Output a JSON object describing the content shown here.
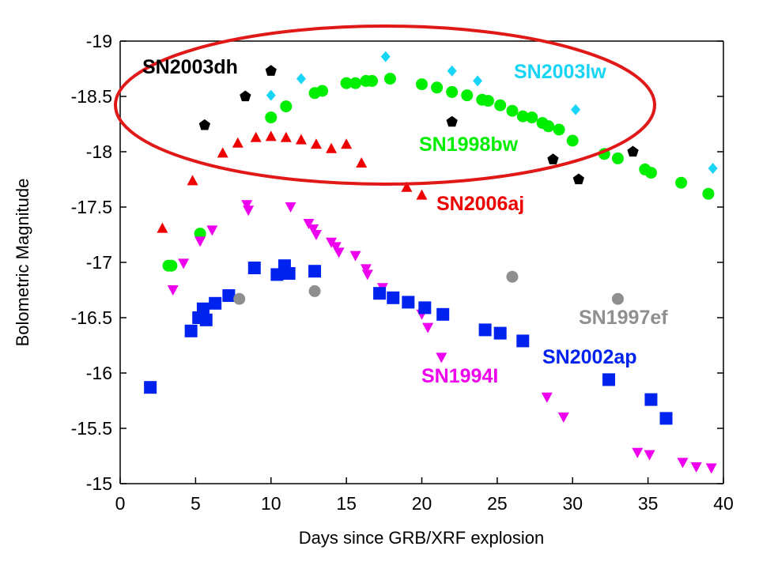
{
  "chart_data": {
    "type": "scatter",
    "xlabel": "Days since GRB/XRF explosion",
    "ylabel": "Bolometric Magnitude",
    "xlim": [
      0,
      40
    ],
    "ylim": [
      -15,
      -19
    ],
    "y_inverted": true,
    "x_ticks": [
      "0",
      "5",
      "10",
      "15",
      "20",
      "25",
      "30",
      "35",
      "40"
    ],
    "y_ticks": [
      "-15",
      "-15.5",
      "-16",
      "-16.5",
      "-17",
      "-17.5",
      "-18",
      "-18.5",
      "-19"
    ],
    "grid": false,
    "legend": "inline labels",
    "annotation": "red ellipse enclosing SN2003dh, SN2003lw, SN1998bw and SN2006aj",
    "series": [
      {
        "name": "SN2003dh",
        "color": "#000000",
        "marker": "pentagon",
        "x": [
          5.6,
          8.3,
          10.0,
          22.0,
          28.7,
          30.4,
          34.0
        ],
        "y": [
          -18.24,
          -18.5,
          -18.73,
          -18.27,
          -17.93,
          -17.75,
          -18.0
        ]
      },
      {
        "name": "SN2003lw",
        "color": "#19d5f5",
        "marker": "diamond",
        "x": [
          10.0,
          12.0,
          17.6,
          22.0,
          23.7,
          30.2,
          39.3
        ],
        "y": [
          -18.51,
          -18.66,
          -18.86,
          -18.73,
          -18.64,
          -18.38,
          -17.85
        ]
      },
      {
        "name": "SN1998bw",
        "color": "#00ee00",
        "marker": "circle",
        "x": [
          3.2,
          3.4,
          5.3,
          10.0,
          11.0,
          12.9,
          13.4,
          15.0,
          15.6,
          16.3,
          16.7,
          17.9,
          20.0,
          21.0,
          22.0,
          23.0,
          24.0,
          24.4,
          25.2,
          26.0,
          26.7,
          27.3,
          28.0,
          28.4,
          29.1,
          30.0,
          32.1,
          33.0,
          34.8,
          35.2,
          37.2,
          39.0
        ],
        "y": [
          -16.97,
          -16.97,
          -17.26,
          -18.31,
          -18.41,
          -18.53,
          -18.55,
          -18.62,
          -18.62,
          -18.64,
          -18.64,
          -18.66,
          -18.61,
          -18.58,
          -18.54,
          -18.51,
          -18.47,
          -18.46,
          -18.42,
          -18.37,
          -18.32,
          -18.31,
          -18.26,
          -18.23,
          -18.2,
          -18.1,
          -17.98,
          -17.94,
          -17.84,
          -17.81,
          -17.72,
          -17.62
        ]
      },
      {
        "name": "SN2006aj",
        "color": "#ee0000",
        "marker": "triangle-up",
        "x": [
          2.8,
          4.8,
          6.8,
          7.8,
          9.0,
          10.0,
          11.0,
          12.0,
          13.0,
          14.0,
          15.0,
          16.0,
          19.0,
          20.0
        ],
        "y": [
          -17.31,
          -17.74,
          -17.99,
          -18.08,
          -18.13,
          -18.14,
          -18.13,
          -18.11,
          -18.07,
          -18.03,
          -18.07,
          -17.9,
          -17.68,
          -17.61
        ]
      },
      {
        "name": "SN1994I",
        "color": "#ee00ee",
        "marker": "triangle-down",
        "x": [
          3.5,
          4.2,
          5.3,
          6.1,
          8.4,
          8.5,
          11.3,
          12.5,
          12.8,
          13.0,
          14.0,
          14.3,
          14.5,
          15.6,
          16.3,
          16.4,
          17.4,
          20.0,
          20.4,
          21.3,
          28.3,
          29.4,
          34.3,
          35.1,
          37.3,
          38.2,
          39.2
        ],
        "y": [
          -16.75,
          -16.99,
          -17.19,
          -17.29,
          -17.52,
          -17.47,
          -17.5,
          -17.35,
          -17.3,
          -17.25,
          -17.18,
          -17.14,
          -17.09,
          -17.06,
          -16.94,
          -16.89,
          -16.77,
          -16.53,
          -16.41,
          -16.14,
          -15.78,
          -15.6,
          -15.28,
          -15.26,
          -15.19,
          -15.15,
          -15.14
        ]
      },
      {
        "name": "SN2002ap",
        "color": "#0022ee",
        "marker": "square",
        "x": [
          2.0,
          4.7,
          5.2,
          5.5,
          5.7,
          6.3,
          7.2,
          8.9,
          10.4,
          10.9,
          11.2,
          12.9,
          17.2,
          18.1,
          19.1,
          20.2,
          21.4,
          24.2,
          25.2,
          26.7,
          32.4,
          35.2,
          36.2
        ],
        "y": [
          -15.87,
          -16.38,
          -16.5,
          -16.58,
          -16.48,
          -16.63,
          -16.7,
          -16.95,
          -16.89,
          -16.97,
          -16.9,
          -16.92,
          -16.72,
          -16.68,
          -16.64,
          -16.59,
          -16.53,
          -16.39,
          -16.36,
          -16.29,
          -15.94,
          -15.76,
          -15.59
        ]
      },
      {
        "name": "SN1997ef",
        "color": "#8f8f8f",
        "marker": "circle",
        "x": [
          7.9,
          12.9,
          26.0,
          33.0
        ],
        "y": [
          -16.67,
          -16.74,
          -16.87,
          -16.67
        ]
      }
    ]
  }
}
